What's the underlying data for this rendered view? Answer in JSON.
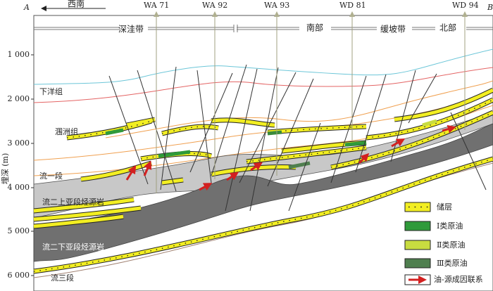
{
  "header": {
    "left_end": "A",
    "right_end": "B",
    "direction": "西南"
  },
  "wells": [
    "WA 71",
    "WA 92",
    "WA 93",
    "WD 81",
    "WD 94"
  ],
  "zones": [
    "深洼带",
    "南部",
    "缓坡带",
    "北部"
  ],
  "axis": {
    "label": "埋深 (m)",
    "ticks": [
      "1 000",
      "2 000",
      "3 000",
      "4 000",
      "5 000",
      "6 000"
    ]
  },
  "formations": [
    "下洋组",
    "涠洲组",
    "流一段",
    "流二上亚段烃源岩",
    "流二下亚段烃源岩",
    "流三段"
  ],
  "legend": [
    "储层",
    "Ⅰ类原油",
    "Ⅱ类原油",
    "Ⅲ类原油",
    "油-源成因联系"
  ]
}
